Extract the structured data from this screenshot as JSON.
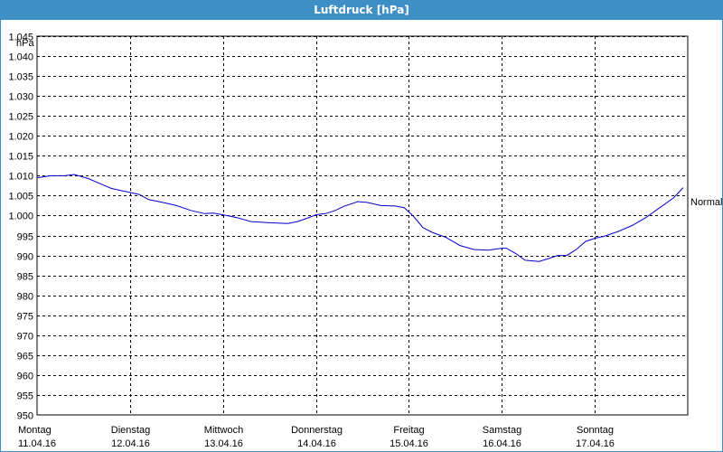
{
  "window": {
    "title": "Luftdruck [hPa]"
  },
  "chart_data": {
    "type": "line",
    "title": "Luftdruck [hPa]",
    "ylabel": "hPa",
    "xlabel": "",
    "ylim": [
      950,
      1045
    ],
    "yticks": [
      "1.045",
      "1.040",
      "1.035",
      "1.030",
      "1.025",
      "1.020",
      "1.015",
      "1.010",
      "1.005",
      "1.000",
      "995",
      "990",
      "985",
      "980",
      "975",
      "970",
      "965",
      "960",
      "955",
      "950"
    ],
    "ytick_values": [
      1045,
      1040,
      1035,
      1030,
      1025,
      1020,
      1015,
      1010,
      1005,
      1000,
      995,
      990,
      985,
      980,
      975,
      970,
      965,
      960,
      955,
      950
    ],
    "xlim": [
      0,
      7
    ],
    "xticks": [
      {
        "day": "Montag",
        "date": "11.04.16",
        "x": 0
      },
      {
        "day": "Dienstag",
        "date": "12.04.16",
        "x": 1
      },
      {
        "day": "Mittwoch",
        "date": "13.04.16",
        "x": 2
      },
      {
        "day": "Donnerstag",
        "date": "14.04.16",
        "x": 3
      },
      {
        "day": "Freitag",
        "date": "15.04.16",
        "x": 4
      },
      {
        "day": "Samstag",
        "date": "16.04.16",
        "x": 5
      },
      {
        "day": "Sonntag",
        "date": "17.04.16",
        "x": 6
      }
    ],
    "grid": true,
    "line_color": "#0000cc",
    "annotation": "Normal",
    "series": [
      {
        "x": [
          0,
          0.15,
          0.3,
          0.4,
          0.55,
          0.7,
          0.8,
          0.9,
          1.0,
          1.1,
          1.2,
          1.35,
          1.5,
          1.65,
          1.8,
          1.9,
          2.0,
          2.15,
          2.3,
          2.5,
          2.7,
          2.8,
          2.9,
          3.0,
          3.1,
          3.2,
          3.3,
          3.45,
          3.55,
          3.7,
          3.85,
          3.95,
          4.05,
          4.15,
          4.25,
          4.4,
          4.55,
          4.7,
          4.85,
          5.0,
          5.05,
          5.15,
          5.25,
          5.4,
          5.5,
          5.6,
          5.7,
          5.8,
          5.9,
          6.0,
          6.1,
          6.25,
          6.4,
          6.55,
          6.7,
          6.85,
          6.95
        ],
        "values": [
          1009.5,
          1010.0,
          1010.0,
          1010.3,
          1009.3,
          1007.8,
          1006.8,
          1006.3,
          1005.8,
          1005.3,
          1004.0,
          1003.3,
          1002.5,
          1001.3,
          1000.5,
          1000.6,
          1000.2,
          999.5,
          998.5,
          998.2,
          998.0,
          998.5,
          999.3,
          1000.2,
          1000.5,
          1001.2,
          1002.3,
          1003.5,
          1003.3,
          1002.5,
          1002.4,
          1002.0,
          999.8,
          997.0,
          995.8,
          994.5,
          992.5,
          991.5,
          991.3,
          991.8,
          991.8,
          990.5,
          988.8,
          988.5,
          989.2,
          990.0,
          990.0,
          991.5,
          993.5,
          994.3,
          994.8,
          996.0,
          997.5,
          999.5,
          1002.0,
          1004.5,
          1007.0
        ]
      }
    ]
  }
}
